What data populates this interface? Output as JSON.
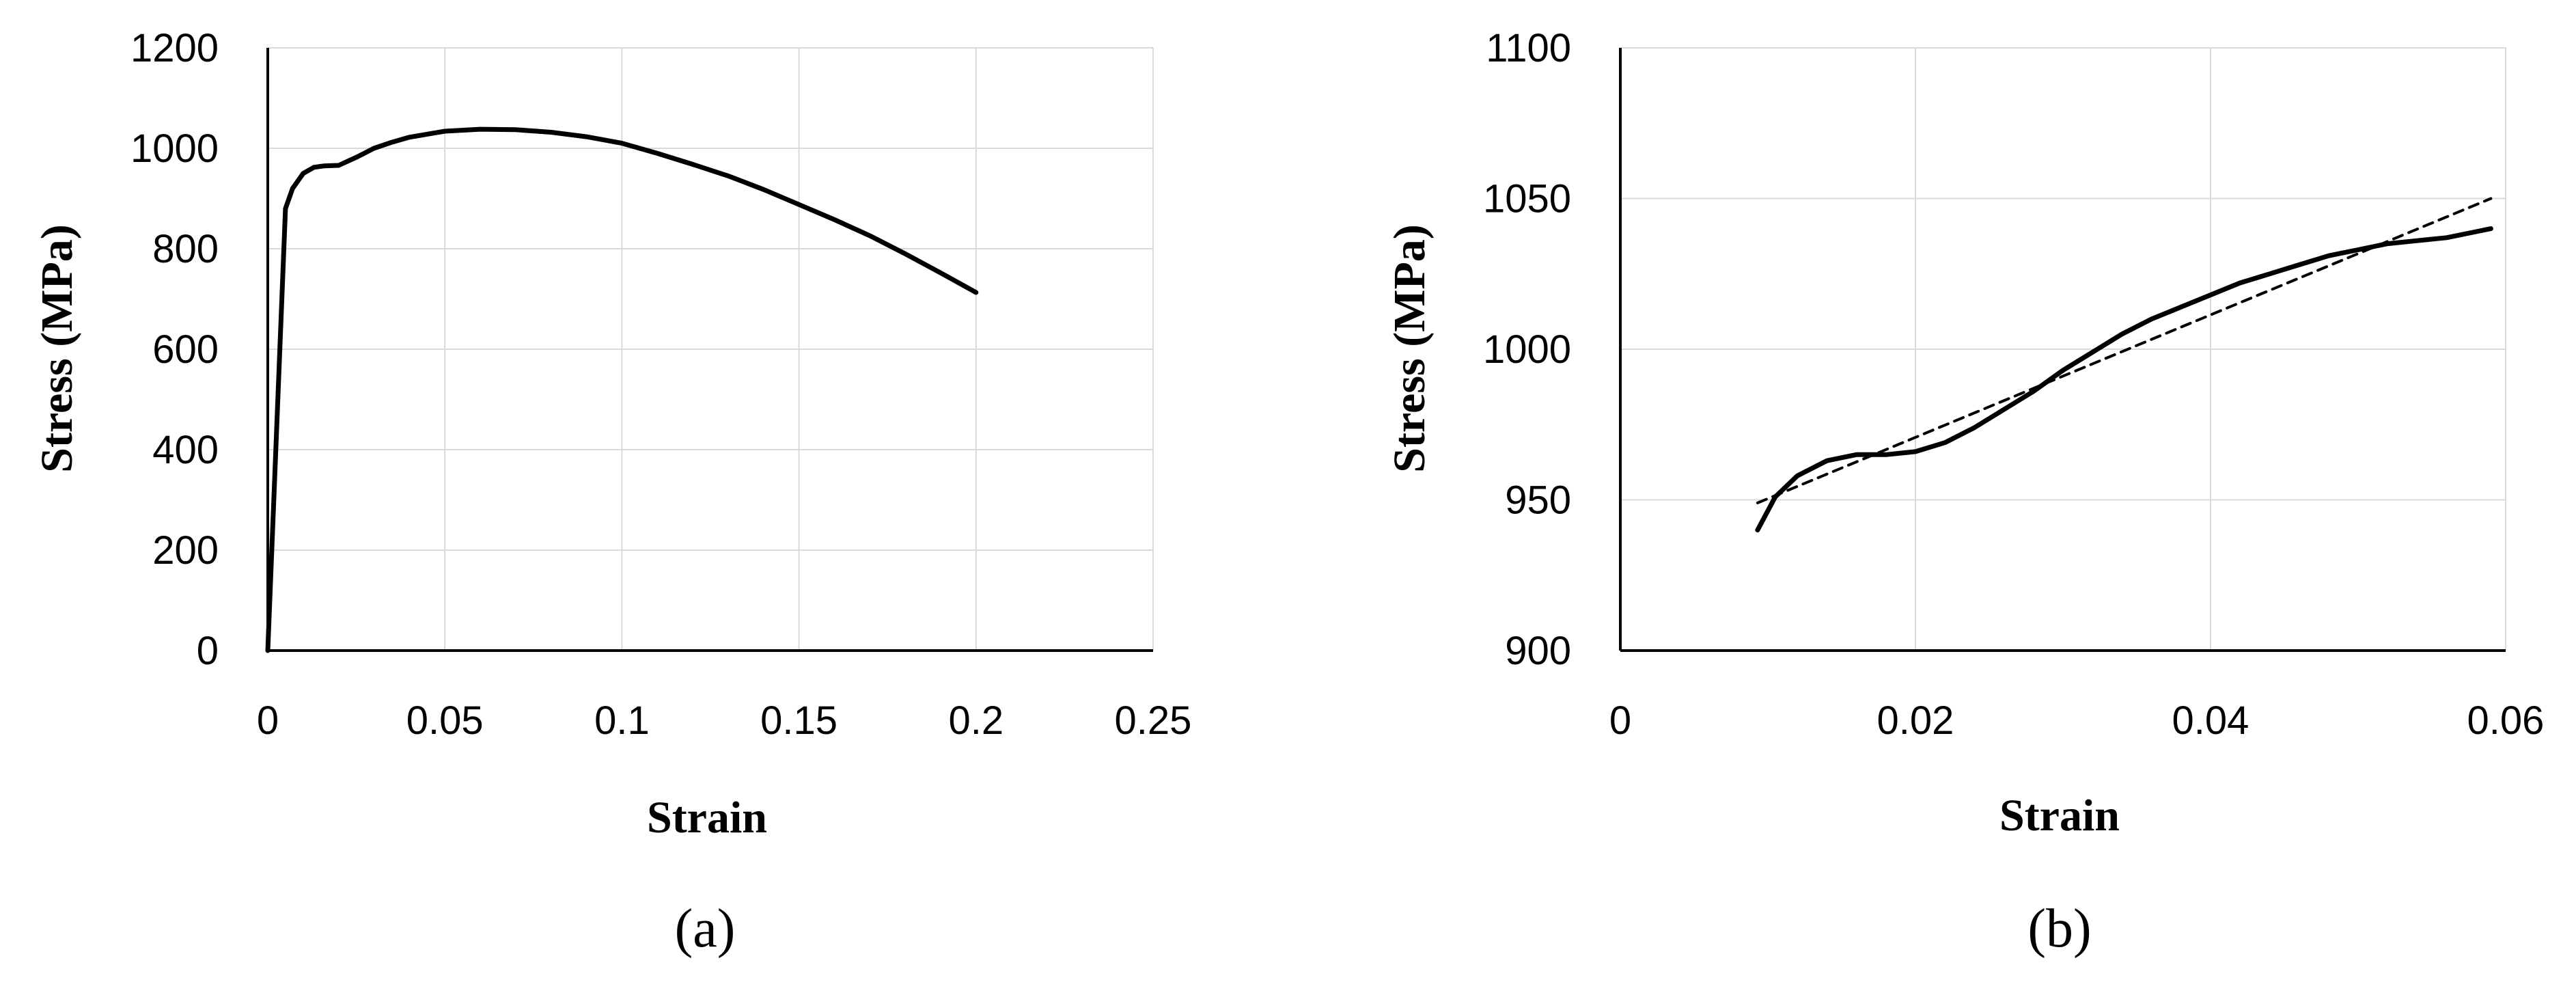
{
  "chart_data": [
    {
      "type": "line",
      "title": "",
      "panel_label": "(a)",
      "xlabel": "Strain",
      "ylabel": "Stress (MPa)",
      "xlim": [
        0,
        0.25
      ],
      "ylim": [
        0,
        1200
      ],
      "xticks": [
        0,
        0.05,
        0.1,
        0.15,
        0.2,
        0.25
      ],
      "yticks": [
        0,
        200,
        400,
        600,
        800,
        1000,
        1200
      ],
      "xtick_labels": [
        "0",
        "0.05",
        "0.1",
        "0.15",
        "0.2",
        "0.25"
      ],
      "ytick_labels": [
        "0",
        "200",
        "400",
        "600",
        "800",
        "1000",
        "1200"
      ],
      "grid": true,
      "legend": "none",
      "series": [
        {
          "style": "solid",
          "color": "#000000",
          "x": [
            0,
            0.005,
            0.007,
            0.01,
            0.013,
            0.016,
            0.02,
            0.025,
            0.03,
            0.035,
            0.04,
            0.05,
            0.06,
            0.07,
            0.08,
            0.09,
            0.1,
            0.11,
            0.12,
            0.13,
            0.14,
            0.15,
            0.16,
            0.17,
            0.18,
            0.19,
            0.2
          ],
          "y": [
            0,
            880,
            920,
            950,
            962,
            965,
            966,
            982,
            1000,
            1012,
            1022,
            1034,
            1038,
            1037,
            1032,
            1023,
            1010,
            990,
            968,
            945,
            918,
            888,
            858,
            826,
            790,
            752,
            713
          ]
        }
      ]
    },
    {
      "type": "line",
      "title": "",
      "panel_label": "(b)",
      "xlabel": "Strain",
      "ylabel": "Stress (MPa)",
      "xlim": [
        0,
        0.06
      ],
      "ylim": [
        900,
        1100
      ],
      "xticks": [
        0,
        0.02,
        0.04,
        0.06
      ],
      "yticks": [
        900,
        950,
        1000,
        1050,
        1100
      ],
      "xtick_labels": [
        "0",
        "0.02",
        "0.04",
        "0.06"
      ],
      "ytick_labels": [
        "900",
        "950",
        "1000",
        "1050",
        "1100"
      ],
      "grid": true,
      "legend": "none",
      "series": [
        {
          "style": "solid",
          "color": "#000000",
          "x": [
            0.0093,
            0.0105,
            0.012,
            0.014,
            0.016,
            0.018,
            0.02,
            0.022,
            0.024,
            0.026,
            0.028,
            0.03,
            0.032,
            0.034,
            0.036,
            0.038,
            0.04,
            0.042,
            0.044,
            0.046,
            0.048,
            0.05,
            0.052,
            0.054,
            0.056,
            0.058,
            0.059
          ],
          "y": [
            940,
            951,
            958,
            963,
            965,
            965,
            966,
            969,
            974,
            980,
            986,
            993,
            999,
            1005,
            1010,
            1014,
            1018,
            1022,
            1025,
            1028,
            1031,
            1033,
            1035,
            1036,
            1037,
            1039,
            1040
          ]
        },
        {
          "style": "dashed",
          "color": "#000000",
          "x": [
            0.0093,
            0.059
          ],
          "y": [
            949,
            1050
          ]
        }
      ]
    }
  ]
}
